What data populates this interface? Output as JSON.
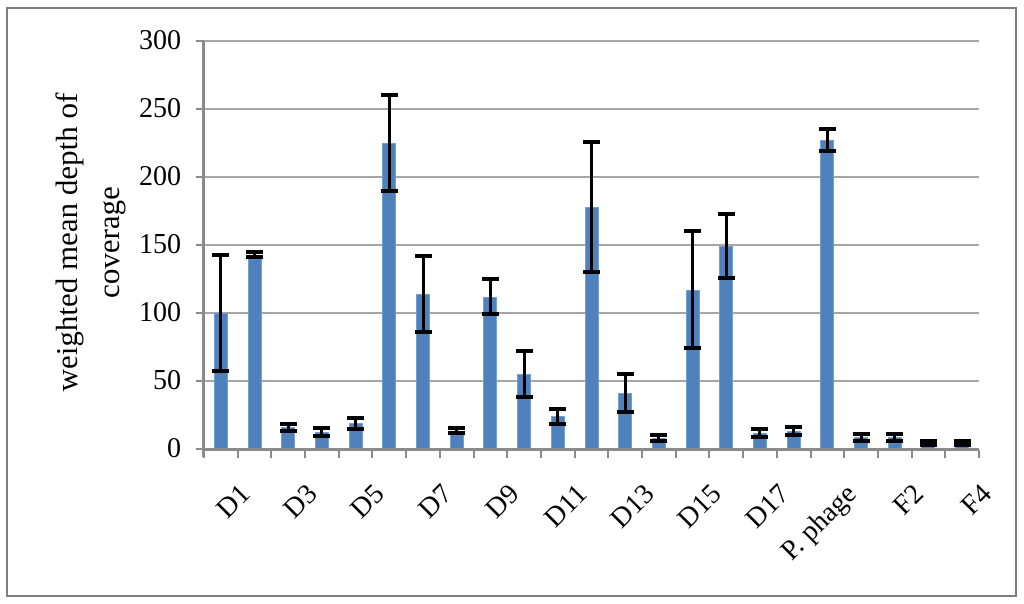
{
  "chart_data": {
    "type": "bar",
    "title": "",
    "ylabel_line1": "weighted mean depth of",
    "ylabel_line2": "coverage",
    "xlabel": "",
    "ylim": [
      0,
      300
    ],
    "yticks": [
      0,
      50,
      100,
      150,
      200,
      250,
      300
    ],
    "grid": true,
    "legend": "none",
    "colors": {
      "bar_fill": "#4f81bd",
      "bar_edge": "#74a0d0",
      "error_bar": "#000000",
      "gridline": "#a6a6a6",
      "axis": "#8a8a8a",
      "frame_border": "#7f7f7f",
      "background": "#ffffff"
    },
    "bars": [
      {
        "label": "D1",
        "value": 100,
        "error": 43
      },
      {
        "label": "",
        "value": 143,
        "error": 2
      },
      {
        "label": "D3",
        "value": 16,
        "error": 2.5
      },
      {
        "label": "",
        "value": 12.5,
        "error": 3
      },
      {
        "label": "D5",
        "value": 19,
        "error": 4
      },
      {
        "label": "",
        "value": 225,
        "error": 35
      },
      {
        "label": "D7",
        "value": 114,
        "error": 28
      },
      {
        "label": "",
        "value": 13.5,
        "error": 2
      },
      {
        "label": "D9",
        "value": 112,
        "error": 13
      },
      {
        "label": "",
        "value": 55,
        "error": 17
      },
      {
        "label": "D11",
        "value": 24,
        "error": 5.5
      },
      {
        "label": "",
        "value": 178,
        "error": 48
      },
      {
        "label": "D13",
        "value": 41,
        "error": 14
      },
      {
        "label": "",
        "value": 8,
        "error": 2
      },
      {
        "label": "D15",
        "value": 117,
        "error": 43
      },
      {
        "label": "",
        "value": 149,
        "error": 23.5
      },
      {
        "label": "D17",
        "value": 11.5,
        "error": 3
      },
      {
        "label": "",
        "value": 13,
        "error": 3
      },
      {
        "label": "P. phage",
        "value": 227,
        "error": 8
      },
      {
        "label": "",
        "value": 8.5,
        "error": 2.5
      },
      {
        "label": "F2",
        "value": 8.5,
        "error": 2.5
      },
      {
        "label": "",
        "value": 4.5,
        "error": 1.5
      },
      {
        "label": "F4",
        "value": 4.5,
        "error": 1.5
      }
    ]
  }
}
